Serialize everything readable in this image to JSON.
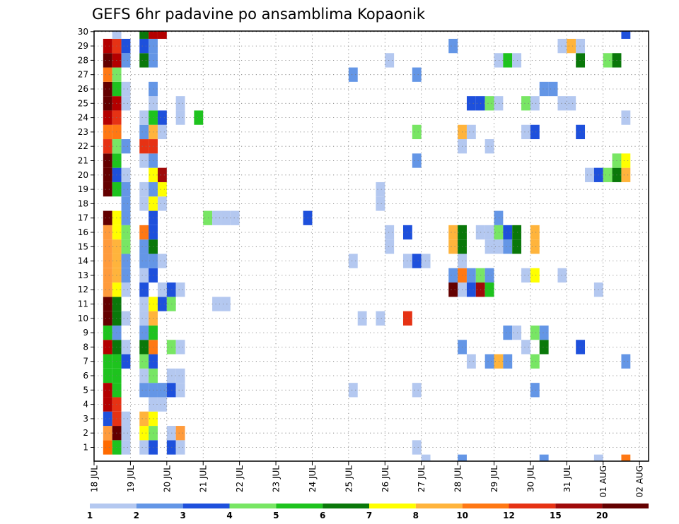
{
  "chart_data": {
    "type": "heatmap",
    "title": "GEFS 6hr padavine po ansamblima Kopaonik",
    "xlabel": "",
    "ylabel": "",
    "x_tick_labels": [
      "18 JUL",
      "19 JUL",
      "20 JUL",
      "21 JUL",
      "22 JUL",
      "23 JUL",
      "24 JUL",
      "25 JUL",
      "26 JUL",
      "27 JUL",
      "28 JUL",
      "29 JUL",
      "30 JUL",
      "31 JUL",
      "01 AUG",
      "02 AUG"
    ],
    "time_steps": 61,
    "step_hours": 6,
    "y_members": [
      1,
      2,
      3,
      4,
      5,
      6,
      7,
      8,
      9,
      10,
      11,
      12,
      13,
      14,
      15,
      16,
      17,
      18,
      19,
      20,
      21,
      22,
      23,
      24,
      25,
      26,
      27,
      28,
      29,
      30
    ],
    "grid": true,
    "legend_position": "bottom",
    "legend": {
      "labels": [
        "1",
        "2",
        "3",
        "4",
        "5",
        "6",
        "7",
        "8",
        "10",
        "12",
        "15",
        "20"
      ],
      "colors": [
        "#b4c8f0",
        "#6496e6",
        "#1e50dc",
        "#78e664",
        "#1ec31e",
        "#0a780a",
        "#ffff00",
        "#ffb43c",
        "#ff7814",
        "#e63214",
        "#a00a0a",
        "#640000"
      ]
    },
    "cells": [
      [
        5,
        1,
        "#ff6a00"
      ],
      [
        5,
        2,
        "#ff9b3c"
      ],
      [
        5,
        3,
        "#1e50dc"
      ],
      [
        5,
        4,
        "#b40000"
      ],
      [
        5,
        5,
        "#b40000"
      ],
      [
        5,
        6,
        "#1ec31e"
      ],
      [
        5,
        7,
        "#1ec31e"
      ],
      [
        5,
        8,
        "#b40000"
      ],
      [
        5,
        9,
        "#1ec31e"
      ],
      [
        5,
        10,
        "#640000"
      ],
      [
        5,
        11,
        "#640000"
      ],
      [
        5,
        12,
        "#ff9b3c"
      ],
      [
        5,
        13,
        "#ff9b3c"
      ],
      [
        5,
        14,
        "#ff9b3c"
      ],
      [
        5,
        15,
        "#ff9b3c"
      ],
      [
        5,
        16,
        "#ff9b3c"
      ],
      [
        5,
        17,
        "#640000"
      ],
      [
        5,
        19,
        "#640000"
      ],
      [
        5,
        20,
        "#640000"
      ],
      [
        5,
        21,
        "#640000"
      ],
      [
        5,
        22,
        "#e63214"
      ],
      [
        5,
        23,
        "#ff7814"
      ],
      [
        5,
        24,
        "#b40000"
      ],
      [
        5,
        25,
        "#640000"
      ],
      [
        5,
        26,
        "#640000"
      ],
      [
        5,
        27,
        "#ff7814"
      ],
      [
        5,
        28,
        "#640000"
      ],
      [
        5,
        29,
        "#b40000"
      ],
      [
        6,
        1,
        "#1ec31e"
      ],
      [
        6,
        2,
        "#640000"
      ],
      [
        6,
        3,
        "#e63214"
      ],
      [
        6,
        4,
        "#e63214"
      ],
      [
        6,
        5,
        "#1ec31e"
      ],
      [
        6,
        6,
        "#1ec31e"
      ],
      [
        6,
        7,
        "#1ec31e"
      ],
      [
        6,
        8,
        "#0a780a"
      ],
      [
        6,
        9,
        "#6496e6"
      ],
      [
        6,
        10,
        "#0a780a"
      ],
      [
        6,
        11,
        "#0a780a"
      ],
      [
        6,
        12,
        "#ffff00"
      ],
      [
        6,
        13,
        "#ffb43c"
      ],
      [
        6,
        14,
        "#ffb43c"
      ],
      [
        6,
        15,
        "#ffb43c"
      ],
      [
        6,
        16,
        "#ffff00"
      ],
      [
        6,
        17,
        "#ffff00"
      ],
      [
        6,
        19,
        "#1ec31e"
      ],
      [
        6,
        20,
        "#1e50dc"
      ],
      [
        6,
        21,
        "#1ec31e"
      ],
      [
        6,
        22,
        "#78e664"
      ],
      [
        6,
        23,
        "#ff7814"
      ],
      [
        6,
        24,
        "#e63214"
      ],
      [
        6,
        25,
        "#b40000"
      ],
      [
        6,
        26,
        "#1ec31e"
      ],
      [
        6,
        27,
        "#78e664"
      ],
      [
        6,
        28,
        "#b40000"
      ],
      [
        6,
        29,
        "#e63214"
      ],
      [
        6,
        30,
        "#b4c8f0"
      ],
      [
        7,
        1,
        "#b4c8f0"
      ],
      [
        7,
        2,
        "#b4c8f0"
      ],
      [
        7,
        3,
        "#b4c8f0"
      ],
      [
        7,
        7,
        "#1e50dc"
      ],
      [
        7,
        8,
        "#b4c8f0"
      ],
      [
        7,
        10,
        "#b4c8f0"
      ],
      [
        7,
        12,
        "#b4c8f0"
      ],
      [
        7,
        13,
        "#6496e6"
      ],
      [
        7,
        14,
        "#6496e6"
      ],
      [
        7,
        15,
        "#78e664"
      ],
      [
        7,
        16,
        "#78e664"
      ],
      [
        7,
        17,
        "#6496e6"
      ],
      [
        7,
        18,
        "#6496e6"
      ],
      [
        7,
        19,
        "#6496e6"
      ],
      [
        7,
        20,
        "#b4c8f0"
      ],
      [
        7,
        22,
        "#6496e6"
      ],
      [
        7,
        25,
        "#b4c8f0"
      ],
      [
        7,
        26,
        "#b4c8f0"
      ],
      [
        7,
        28,
        "#6496e6"
      ],
      [
        7,
        29,
        "#1e50dc"
      ],
      [
        9,
        1,
        "#b4c8f0"
      ],
      [
        9,
        2,
        "#ffff00"
      ],
      [
        9,
        3,
        "#ffb43c"
      ],
      [
        9,
        5,
        "#6496e6"
      ],
      [
        9,
        6,
        "#b4c8f0"
      ],
      [
        9,
        7,
        "#78e664"
      ],
      [
        9,
        8,
        "#0a780a"
      ],
      [
        9,
        9,
        "#6496e6"
      ],
      [
        9,
        10,
        "#b4c8f0"
      ],
      [
        9,
        11,
        "#b4c8f0"
      ],
      [
        9,
        12,
        "#1e50dc"
      ],
      [
        9,
        13,
        "#b4c8f0"
      ],
      [
        9,
        14,
        "#6496e6"
      ],
      [
        9,
        15,
        "#6496e6"
      ],
      [
        9,
        16,
        "#ff7814"
      ],
      [
        9,
        18,
        "#b4c8f0"
      ],
      [
        9,
        19,
        "#b4c8f0"
      ],
      [
        9,
        21,
        "#b4c8f0"
      ],
      [
        9,
        22,
        "#e63214"
      ],
      [
        9,
        23,
        "#6496e6"
      ],
      [
        9,
        24,
        "#b4c8f0"
      ],
      [
        9,
        28,
        "#0a780a"
      ],
      [
        9,
        29,
        "#1e50dc"
      ],
      [
        9,
        30,
        "#0a780a"
      ],
      [
        10,
        1,
        "#1e50dc"
      ],
      [
        10,
        2,
        "#78e664"
      ],
      [
        10,
        3,
        "#ffff00"
      ],
      [
        10,
        4,
        "#b4c8f0"
      ],
      [
        10,
        5,
        "#6496e6"
      ],
      [
        10,
        6,
        "#78e664"
      ],
      [
        10,
        7,
        "#1e50dc"
      ],
      [
        10,
        8,
        "#ff7814"
      ],
      [
        10,
        9,
        "#1ec31e"
      ],
      [
        10,
        10,
        "#ffb43c"
      ],
      [
        10,
        11,
        "#ffff00"
      ],
      [
        10,
        13,
        "#1e50dc"
      ],
      [
        10,
        14,
        "#6496e6"
      ],
      [
        10,
        15,
        "#0a780a"
      ],
      [
        10,
        16,
        "#1e50dc"
      ],
      [
        10,
        17,
        "#1e50dc"
      ],
      [
        10,
        18,
        "#ffff00"
      ],
      [
        10,
        19,
        "#6496e6"
      ],
      [
        10,
        20,
        "#ffff00"
      ],
      [
        10,
        21,
        "#6496e6"
      ],
      [
        10,
        22,
        "#e63214"
      ],
      [
        10,
        23,
        "#ffb43c"
      ],
      [
        10,
        24,
        "#1ec31e"
      ],
      [
        10,
        25,
        "#b4c8f0"
      ],
      [
        10,
        26,
        "#6496e6"
      ],
      [
        10,
        28,
        "#6496e6"
      ],
      [
        10,
        29,
        "#6496e6"
      ],
      [
        10,
        30,
        "#b40000"
      ],
      [
        11,
        4,
        "#b4c8f0"
      ],
      [
        11,
        5,
        "#6496e6"
      ],
      [
        11,
        11,
        "#1e50dc"
      ],
      [
        11,
        12,
        "#b4c8f0"
      ],
      [
        11,
        14,
        "#b4c8f0"
      ],
      [
        11,
        18,
        "#b4c8f0"
      ],
      [
        11,
        19,
        "#ffff00"
      ],
      [
        11,
        20,
        "#a00a0a"
      ],
      [
        11,
        23,
        "#b4c8f0"
      ],
      [
        11,
        24,
        "#1e50dc"
      ],
      [
        11,
        30,
        "#b40000"
      ],
      [
        12,
        1,
        "#1e50dc"
      ],
      [
        12,
        2,
        "#b4c8f0"
      ],
      [
        12,
        5,
        "#1e50dc"
      ],
      [
        12,
        6,
        "#b4c8f0"
      ],
      [
        12,
        8,
        "#78e664"
      ],
      [
        12,
        11,
        "#78e664"
      ],
      [
        12,
        12,
        "#1e50dc"
      ],
      [
        13,
        1,
        "#b4c8f0"
      ],
      [
        13,
        2,
        "#ff9b3c"
      ],
      [
        13,
        5,
        "#b4c8f0"
      ],
      [
        13,
        6,
        "#b4c8f0"
      ],
      [
        13,
        8,
        "#b4c8f0"
      ],
      [
        13,
        12,
        "#b4c8f0"
      ],
      [
        13,
        24,
        "#b4c8f0"
      ],
      [
        13,
        25,
        "#b4c8f0"
      ],
      [
        15,
        24,
        "#1ec31e"
      ],
      [
        16,
        17,
        "#78e664"
      ],
      [
        17,
        11,
        "#b4c8f0"
      ],
      [
        17,
        17,
        "#b4c8f0"
      ],
      [
        18,
        11,
        "#b4c8f0"
      ],
      [
        18,
        17,
        "#b4c8f0"
      ],
      [
        19,
        17,
        "#b4c8f0"
      ],
      [
        27,
        17,
        "#1e50dc"
      ],
      [
        32,
        5,
        "#b4c8f0"
      ],
      [
        32,
        14,
        "#b4c8f0"
      ],
      [
        32,
        27,
        "#6496e6"
      ],
      [
        33,
        10,
        "#b4c8f0"
      ],
      [
        35,
        10,
        "#b4c8f0"
      ],
      [
        35,
        18,
        "#b4c8f0"
      ],
      [
        35,
        19,
        "#b4c8f0"
      ],
      [
        36,
        15,
        "#b4c8f0"
      ],
      [
        36,
        16,
        "#b4c8f0"
      ],
      [
        36,
        28,
        "#b4c8f0"
      ],
      [
        38,
        10,
        "#e63214"
      ],
      [
        38,
        14,
        "#b4c8f0"
      ],
      [
        38,
        16,
        "#1e50dc"
      ],
      [
        39,
        1,
        "#b4c8f0"
      ],
      [
        39,
        5,
        "#b4c8f0"
      ],
      [
        39,
        14,
        "#1e50dc"
      ],
      [
        39,
        21,
        "#6496e6"
      ],
      [
        39,
        23,
        "#78e664"
      ],
      [
        39,
        27,
        "#6496e6"
      ],
      [
        40,
        0,
        "#b4c8f0"
      ],
      [
        40,
        14,
        "#b4c8f0"
      ],
      [
        43,
        12,
        "#640000"
      ],
      [
        43,
        13,
        "#6496e6"
      ],
      [
        43,
        15,
        "#ffb43c"
      ],
      [
        43,
        16,
        "#ffb43c"
      ],
      [
        43,
        29,
        "#6496e6"
      ],
      [
        44,
        0,
        "#6496e6"
      ],
      [
        44,
        8,
        "#6496e6"
      ],
      [
        44,
        12,
        "#b4c8f0"
      ],
      [
        44,
        13,
        "#ff7814"
      ],
      [
        44,
        14,
        "#b4c8f0"
      ],
      [
        44,
        15,
        "#0a780a"
      ],
      [
        44,
        16,
        "#0a780a"
      ],
      [
        44,
        22,
        "#b4c8f0"
      ],
      [
        44,
        23,
        "#ffb43c"
      ],
      [
        45,
        7,
        "#b4c8f0"
      ],
      [
        45,
        12,
        "#1e50dc"
      ],
      [
        45,
        13,
        "#6496e6"
      ],
      [
        45,
        23,
        "#b4c8f0"
      ],
      [
        45,
        25,
        "#1e50dc"
      ],
      [
        46,
        12,
        "#a00a0a"
      ],
      [
        46,
        13,
        "#78e664"
      ],
      [
        46,
        16,
        "#b4c8f0"
      ],
      [
        46,
        25,
        "#1e50dc"
      ],
      [
        47,
        7,
        "#6496e6"
      ],
      [
        47,
        12,
        "#1ec31e"
      ],
      [
        47,
        13,
        "#6496e6"
      ],
      [
        47,
        15,
        "#b4c8f0"
      ],
      [
        47,
        16,
        "#b4c8f0"
      ],
      [
        47,
        22,
        "#b4c8f0"
      ],
      [
        47,
        25,
        "#78e664"
      ],
      [
        48,
        7,
        "#ffb43c"
      ],
      [
        48,
        15,
        "#b4c8f0"
      ],
      [
        48,
        16,
        "#78e664"
      ],
      [
        48,
        17,
        "#6496e6"
      ],
      [
        48,
        25,
        "#b4c8f0"
      ],
      [
        48,
        28,
        "#b4c8f0"
      ],
      [
        49,
        7,
        "#6496e6"
      ],
      [
        49,
        9,
        "#6496e6"
      ],
      [
        49,
        15,
        "#6496e6"
      ],
      [
        49,
        16,
        "#1e50dc"
      ],
      [
        49,
        28,
        "#1ec31e"
      ],
      [
        50,
        9,
        "#b4c8f0"
      ],
      [
        50,
        15,
        "#0a780a"
      ],
      [
        50,
        16,
        "#0a780a"
      ],
      [
        50,
        28,
        "#b4c8f0"
      ],
      [
        51,
        8,
        "#b4c8f0"
      ],
      [
        51,
        13,
        "#b4c8f0"
      ],
      [
        51,
        23,
        "#b4c8f0"
      ],
      [
        51,
        25,
        "#78e664"
      ],
      [
        52,
        5,
        "#6496e6"
      ],
      [
        52,
        7,
        "#78e664"
      ],
      [
        52,
        9,
        "#78e664"
      ],
      [
        52,
        13,
        "#ffff00"
      ],
      [
        52,
        15,
        "#ffb43c"
      ],
      [
        52,
        16,
        "#ffb43c"
      ],
      [
        52,
        23,
        "#1e50dc"
      ],
      [
        52,
        25,
        "#b4c8f0"
      ],
      [
        53,
        0,
        "#6496e6"
      ],
      [
        53,
        8,
        "#0a780a"
      ],
      [
        53,
        9,
        "#6496e6"
      ],
      [
        53,
        26,
        "#6496e6"
      ],
      [
        54,
        26,
        "#6496e6"
      ],
      [
        55,
        13,
        "#b4c8f0"
      ],
      [
        55,
        25,
        "#b4c8f0"
      ],
      [
        55,
        29,
        "#b4c8f0"
      ],
      [
        56,
        25,
        "#b4c8f0"
      ],
      [
        56,
        29,
        "#ffb43c"
      ],
      [
        57,
        8,
        "#1e50dc"
      ],
      [
        57,
        23,
        "#1e50dc"
      ],
      [
        57,
        28,
        "#0a780a"
      ],
      [
        57,
        29,
        "#b4c8f0"
      ],
      [
        58,
        20,
        "#b4c8f0"
      ],
      [
        59,
        0,
        "#b4c8f0"
      ],
      [
        59,
        12,
        "#b4c8f0"
      ],
      [
        59,
        20,
        "#1e50dc"
      ],
      [
        60,
        20,
        "#78e664"
      ],
      [
        60,
        28,
        "#78e664"
      ],
      [
        61,
        20,
        "#0a780a"
      ],
      [
        61,
        21,
        "#78e664"
      ],
      [
        61,
        28,
        "#0a780a"
      ],
      [
        62,
        0,
        "#ff7814"
      ],
      [
        62,
        7,
        "#6496e6"
      ],
      [
        62,
        20,
        "#ffb43c"
      ],
      [
        62,
        21,
        "#ffff00"
      ],
      [
        62,
        24,
        "#b4c8f0"
      ],
      [
        62,
        30,
        "#1e50dc"
      ]
    ]
  }
}
